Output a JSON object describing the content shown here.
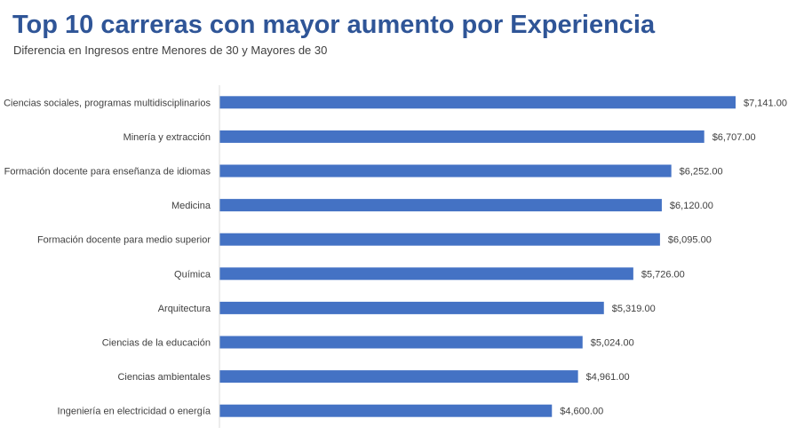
{
  "chart_data": {
    "type": "bar",
    "orientation": "horizontal",
    "title": "Top 10 carreras con mayor aumento por Experiencia",
    "subtitle": "Diferencia en Ingresos entre Menores de 30 y Mayores de 30",
    "xlabel": "",
    "ylabel": "",
    "categories": [
      "Ciencias sociales, programas multidisciplinarios",
      "Minería y extracción",
      "Formación docente para enseñanza de idiomas",
      "Medicina",
      "Formación docente para medio superior",
      "Química",
      "Arquitectura",
      "Ciencias de la educación",
      "Ciencias ambientales",
      "Ingeniería en electricidad o energía"
    ],
    "values": [
      7141,
      6707,
      6252,
      6120,
      6095,
      5726,
      5319,
      5024,
      4961,
      4600
    ],
    "value_labels": [
      "$7,141.00",
      "$6,707.00",
      "$6,252.00",
      "$6,120.00",
      "$6,095.00",
      "$5,726.00",
      "$5,319.00",
      "$5,024.00",
      "$4,961.00",
      "$4,600.00"
    ],
    "xlim": [
      0,
      7141
    ],
    "grid": false,
    "legend": "none",
    "bar_color": "#4472c4",
    "axis_color": "#d9d9d9",
    "title_color": "#2f5597"
  }
}
